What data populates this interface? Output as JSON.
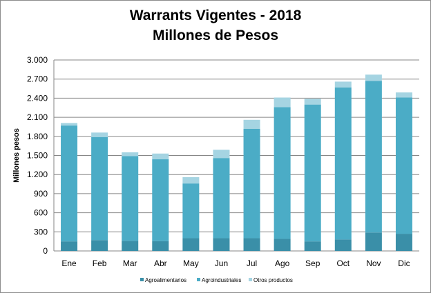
{
  "chart_data": {
    "type": "bar",
    "stacked": true,
    "title_line1": "Warrants Vigentes - 2018",
    "title_line2": "Millones de Pesos",
    "ylabel": "Millones  pesos",
    "xlabel": "",
    "ylim": [
      0,
      3000
    ],
    "yticks": [
      0,
      300,
      600,
      900,
      1200,
      1500,
      1800,
      2100,
      2400,
      2700,
      3000
    ],
    "ytick_labels": [
      "0",
      "300",
      "600",
      "900",
      "1.200",
      "1.500",
      "1.800",
      "2.100",
      "2.400",
      "2.700",
      "3.000"
    ],
    "grid": true,
    "legend_position": "bottom",
    "categories": [
      "Ene",
      "Feb",
      "Mar",
      "Abr",
      "May",
      "Jun",
      "Jul",
      "Ago",
      "Sep",
      "Oct",
      "Nov",
      "Dic"
    ],
    "series": [
      {
        "name": "Agroalimentarios",
        "color": "#3a8fa8",
        "values": [
          150,
          170,
          160,
          155,
          200,
          200,
          200,
          190,
          150,
          180,
          290,
          270
        ]
      },
      {
        "name": "Agroindustriales",
        "color": "#4bacc6",
        "values": [
          1820,
          1620,
          1330,
          1285,
          860,
          1260,
          1720,
          2070,
          2150,
          2390,
          2380,
          2140
        ]
      },
      {
        "name": "Otros productos",
        "color": "#a5d4e2",
        "values": [
          40,
          70,
          60,
          90,
          100,
          130,
          140,
          150,
          90,
          90,
          100,
          80
        ]
      }
    ]
  }
}
